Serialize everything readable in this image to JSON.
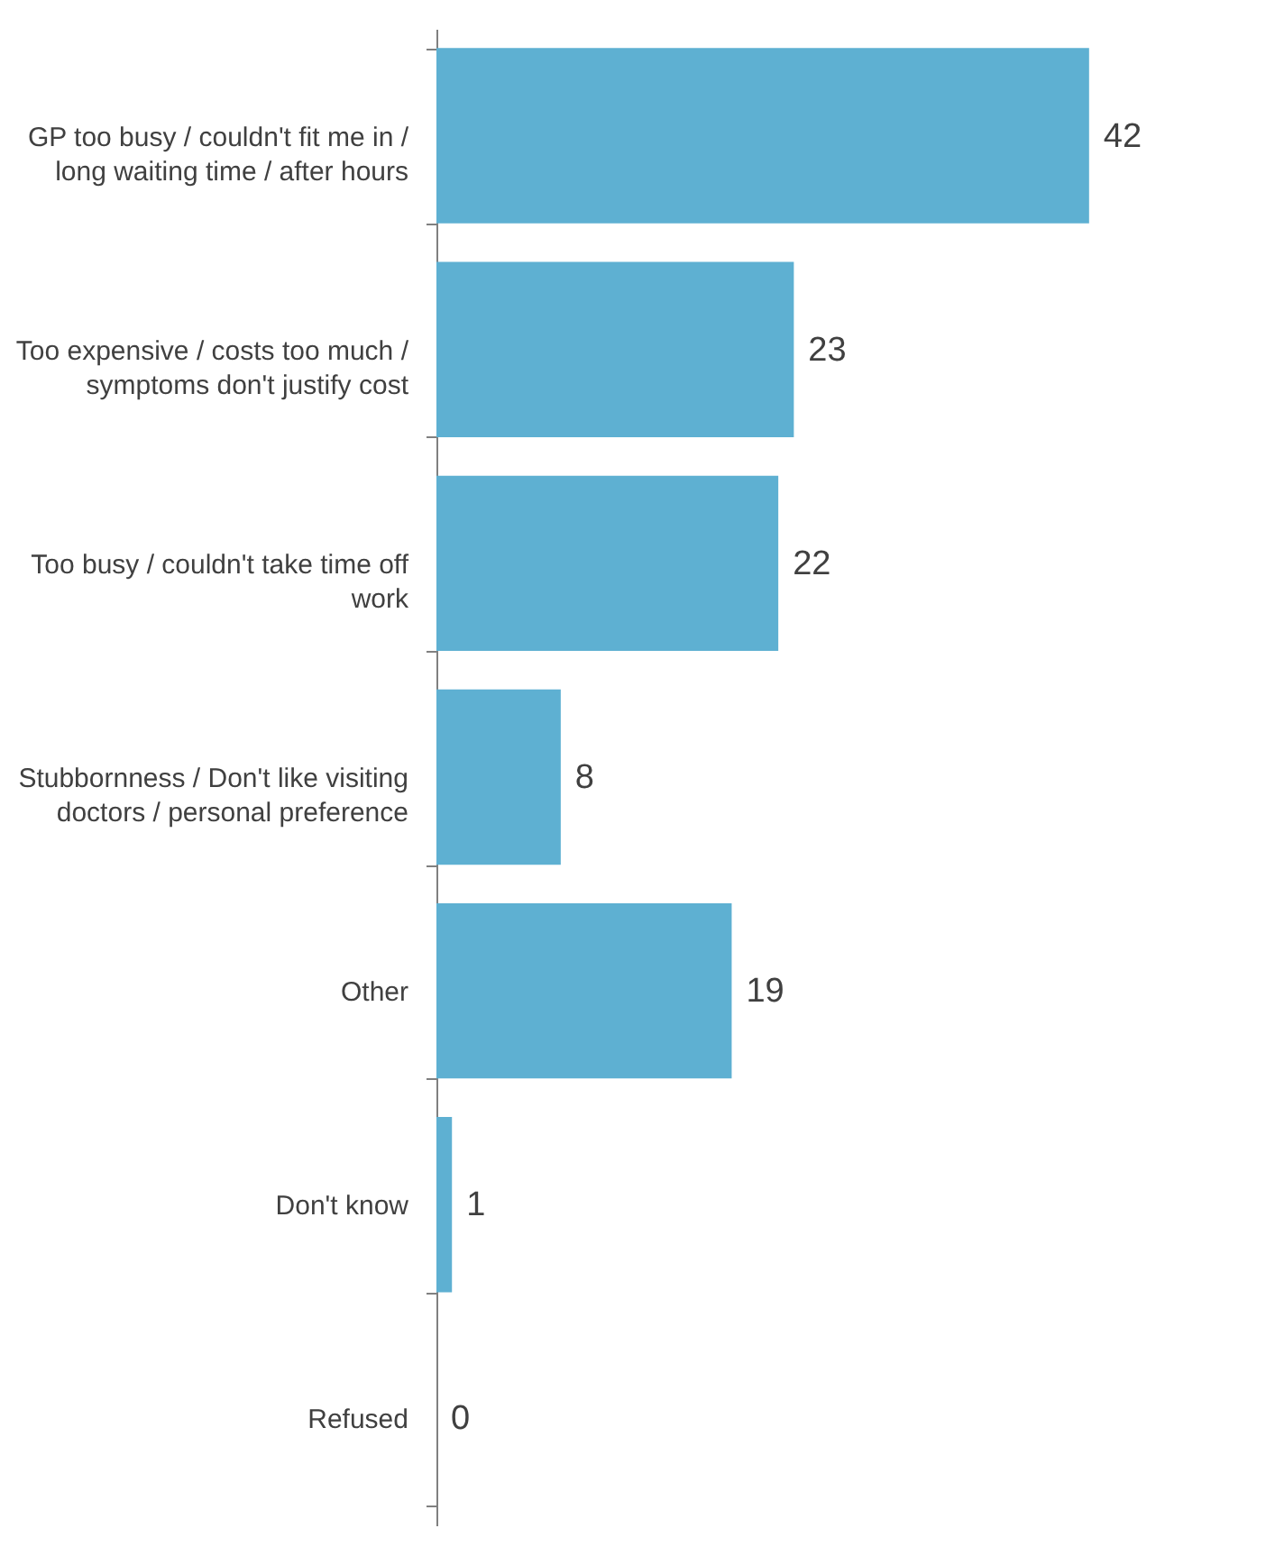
{
  "chart_data": {
    "type": "bar",
    "orientation": "horizontal",
    "categories": [
      "GP too busy / couldn't fit me in / long waiting time / after hours",
      "Too expensive / costs too much / symptoms don't justify cost",
      "Too busy / couldn't take time off work",
      "Stubbornness / Don't like visiting doctors / personal preference",
      "Other",
      "Don't know",
      "Refused"
    ],
    "values": [
      42,
      23,
      22,
      8,
      19,
      1,
      0
    ],
    "color": "#5eb0d2",
    "data_labels": true,
    "grid": false
  }
}
